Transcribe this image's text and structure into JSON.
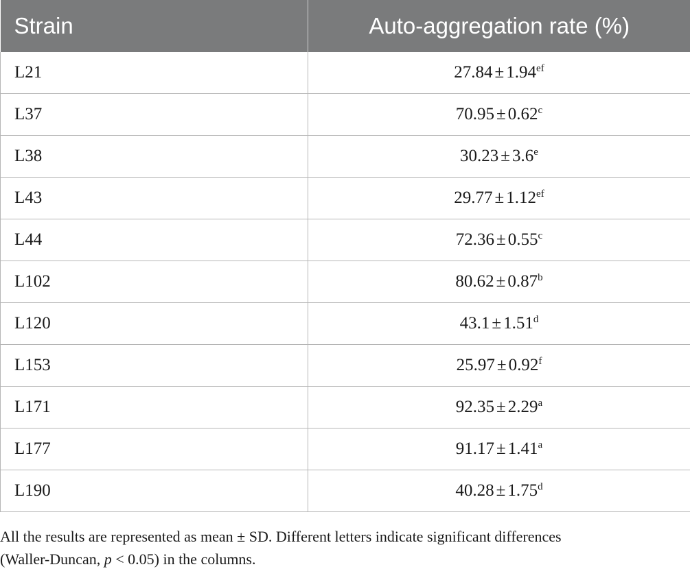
{
  "table": {
    "headers": [
      "Strain",
      "Auto-aggregation rate (%)"
    ],
    "rows": [
      {
        "strain": "L21",
        "mean": "27.84",
        "sd": "1.94",
        "letter": "ef"
      },
      {
        "strain": "L37",
        "mean": "70.95",
        "sd": "0.62",
        "letter": "c"
      },
      {
        "strain": "L38",
        "mean": "30.23",
        "sd": "3.6",
        "letter": "e"
      },
      {
        "strain": "L43",
        "mean": "29.77",
        "sd": "1.12",
        "letter": "ef"
      },
      {
        "strain": "L44",
        "mean": "72.36",
        "sd": "0.55",
        "letter": "c"
      },
      {
        "strain": "L102",
        "mean": "80.62",
        "sd": "0.87",
        "letter": "b"
      },
      {
        "strain": "L120",
        "mean": "43.1",
        "sd": "1.51",
        "letter": "d"
      },
      {
        "strain": "L153",
        "mean": "25.97",
        "sd": "0.92",
        "letter": "f"
      },
      {
        "strain": "L171",
        "mean": "92.35",
        "sd": "2.29",
        "letter": "a"
      },
      {
        "strain": "L177",
        "mean": "91.17",
        "sd": "1.41",
        "letter": "a"
      },
      {
        "strain": "L190",
        "mean": "40.28",
        "sd": "1.75",
        "letter": "d"
      }
    ],
    "pm_symbol": "±"
  },
  "footnote": {
    "line1": "All the results are represented as mean ± SD. Different letters indicate significant differences",
    "line2_pre": "(Waller-Duncan, ",
    "line2_p": "p",
    "line2_post": " < 0.05) in the columns."
  }
}
